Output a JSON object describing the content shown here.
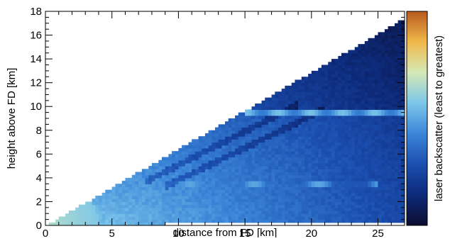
{
  "chart_data": {
    "type": "heatmap",
    "title": "",
    "xlabel": "distance from FD [km]",
    "ylabel": "height above FD [km]",
    "colorbar_label": "laser backscatter (least to greatest)",
    "xlim": [
      0,
      27
    ],
    "ylim": [
      0,
      18
    ],
    "xticks": [
      0,
      5,
      10,
      15,
      20,
      25
    ],
    "yticks": [
      0,
      2,
      4,
      6,
      8,
      10,
      12,
      14,
      16,
      18
    ],
    "grid": false,
    "field_of_view": {
      "description_points": [
        [
          0.2,
          0.0
        ],
        [
          27.0,
          17.3
        ]
      ],
      "lower_edge_km": 0.0
    },
    "cloud_layers": [
      {
        "height_km": 9.4,
        "x_from_km": 15.0,
        "x_to_km": 27.0
      },
      {
        "height_km": 3.5,
        "x_from_km": 6.5,
        "x_to_km": 25.0
      }
    ],
    "aerosol_streaks": [
      {
        "x_from_km": 7.5,
        "y_from_km": 3.7,
        "x_to_km": 19.0,
        "y_to_km": 10.2
      },
      {
        "x_from_km": 9.0,
        "y_from_km": 3.3,
        "x_to_km": 21.0,
        "y_to_km": 9.8
      }
    ],
    "colormap": [
      "#0b0d2e",
      "#0d2a7a",
      "#1b4fb0",
      "#3b86d8",
      "#7cc6ea",
      "#d4e9b6",
      "#f0b84a",
      "#b85a1e"
    ]
  }
}
